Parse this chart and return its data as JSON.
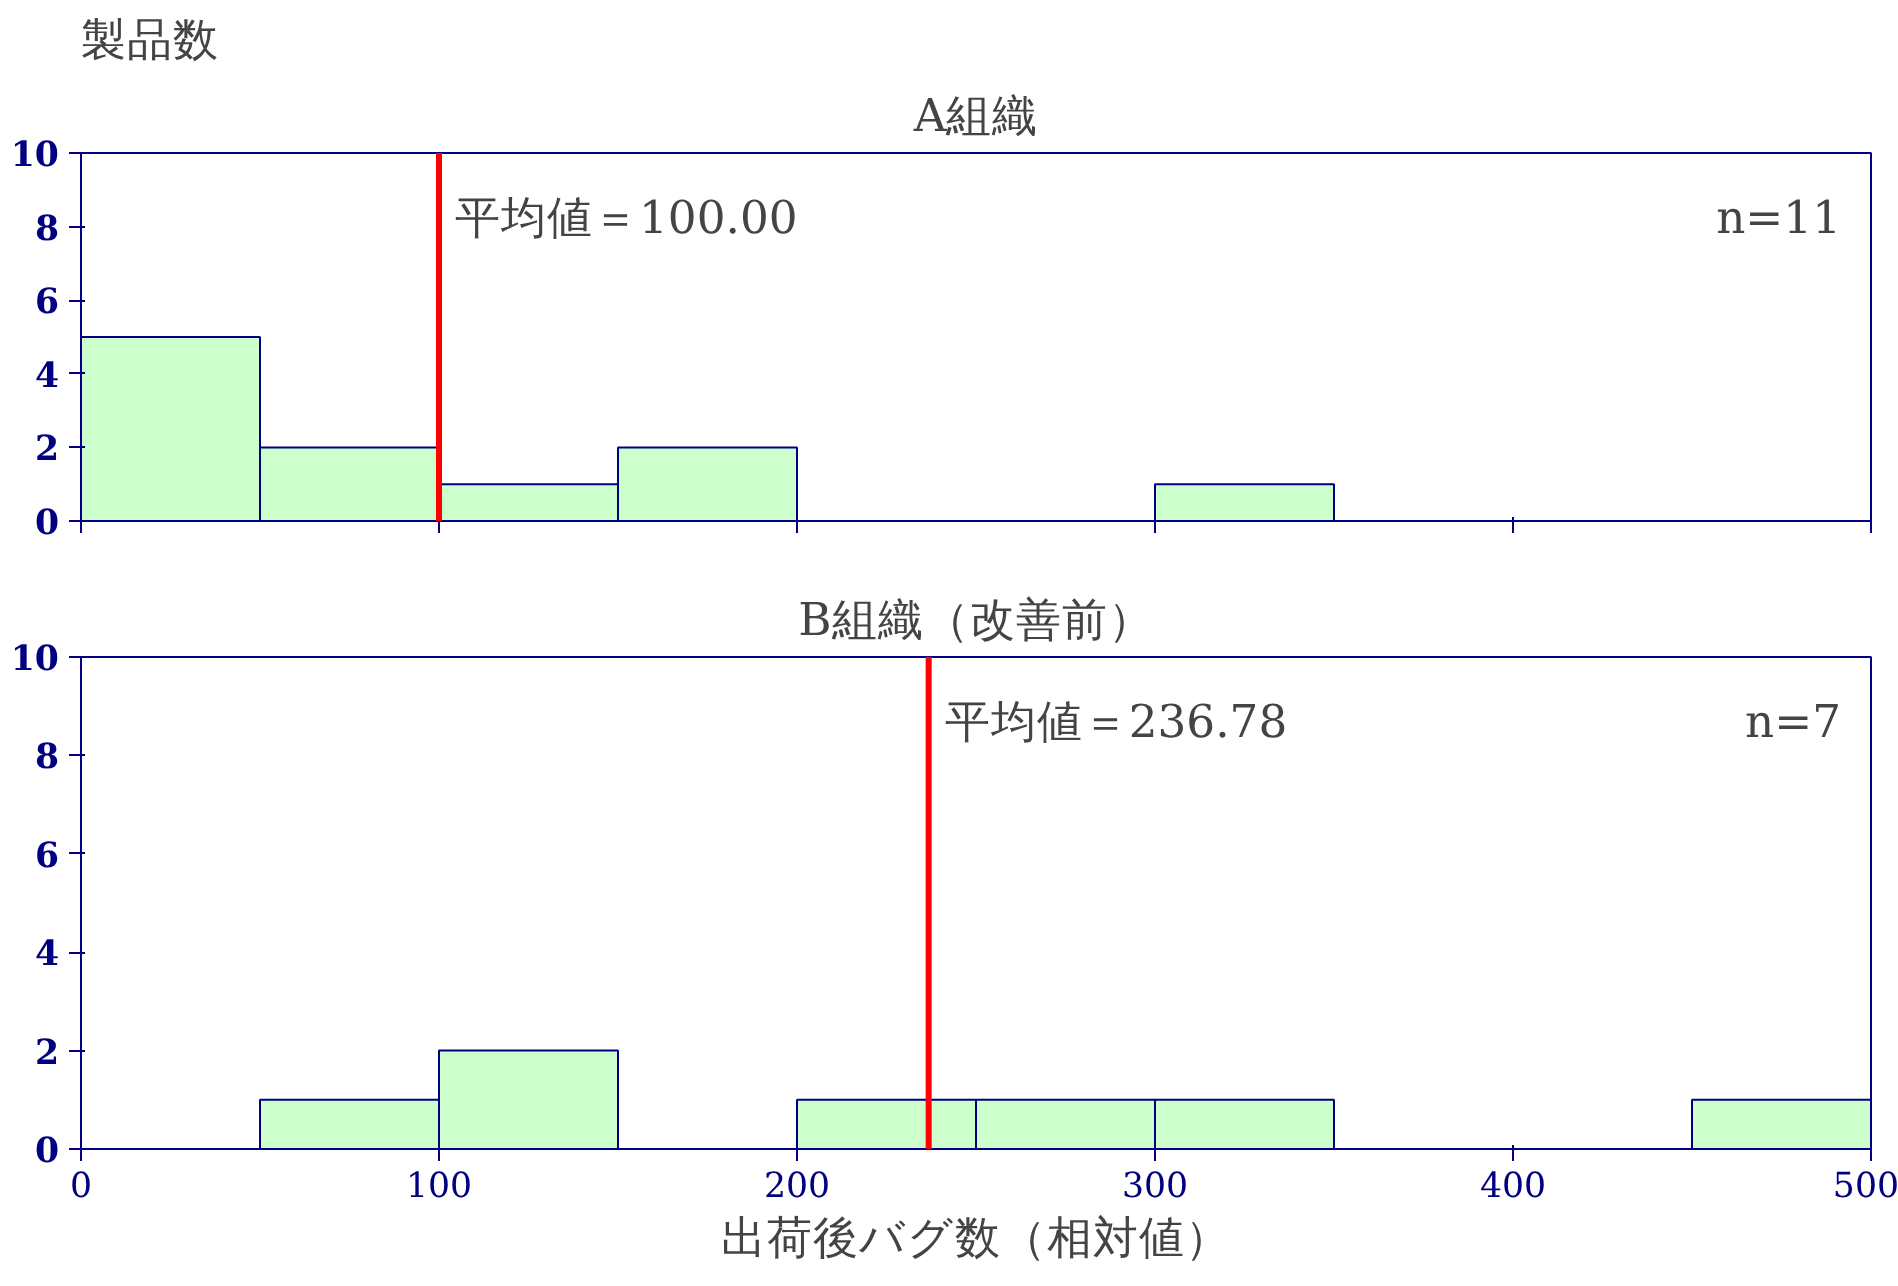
{
  "chart_data": [
    {
      "type": "histogram",
      "title": "A組織",
      "ylabel": "製品数",
      "bins": [
        0,
        50,
        100,
        150,
        200,
        250,
        300,
        350,
        400,
        450,
        500
      ],
      "values": [
        5,
        2,
        1,
        2,
        0,
        0,
        1,
        0,
        0,
        0
      ],
      "color": "#ccffcc",
      "xlim": [
        0,
        500
      ],
      "xticks": [
        0,
        100,
        200,
        300,
        400,
        500
      ],
      "ylim": [
        0,
        10
      ],
      "yticks": [
        0,
        2,
        4,
        6,
        8,
        10
      ],
      "tick_labels": "y",
      "grid": false,
      "ref_lines": [
        {
          "axis": "x",
          "value": 100,
          "label": "平均値＝100.00",
          "color": "#ff0000"
        }
      ],
      "annotations": [
        "n=11"
      ]
    },
    {
      "type": "histogram",
      "title": "B組織（改善前）",
      "xlabel": "出荷後バグ数（相対値）",
      "bins": [
        0,
        50,
        100,
        150,
        200,
        250,
        300,
        350,
        400,
        450,
        500
      ],
      "values": [
        0,
        1,
        2,
        0,
        1,
        1,
        1,
        0,
        0,
        1
      ],
      "color": "#ccffcc",
      "xlim": [
        0,
        500
      ],
      "xticks": [
        0,
        100,
        200,
        300,
        400,
        500
      ],
      "ylim": [
        0,
        10
      ],
      "yticks": [
        0,
        2,
        4,
        6,
        8,
        10
      ],
      "grid": false,
      "ref_lines": [
        {
          "axis": "x",
          "value": 236.78,
          "label": "平均値＝236.78",
          "color": "#ff0000"
        }
      ],
      "annotations": [
        "n=7"
      ]
    }
  ]
}
